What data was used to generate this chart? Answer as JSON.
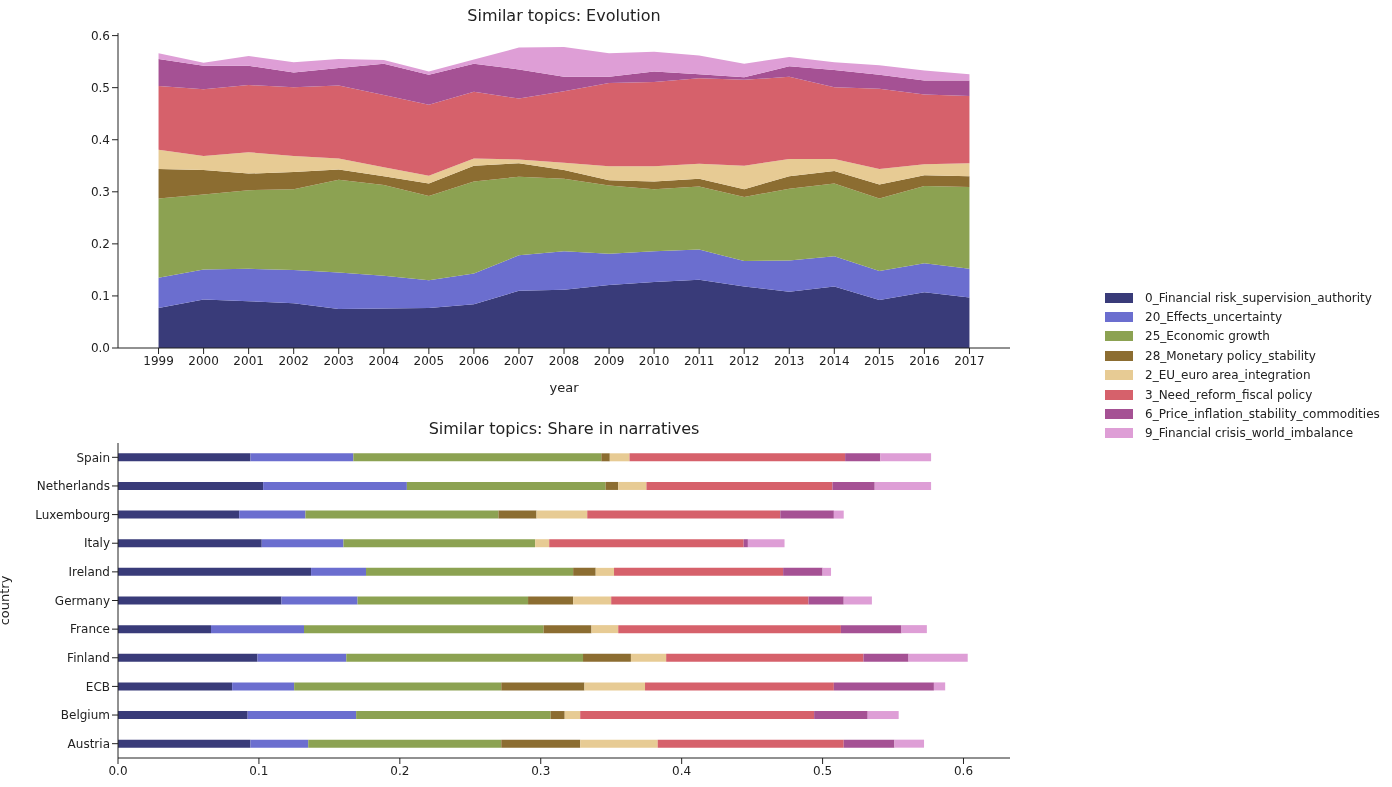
{
  "chart_data": [
    {
      "type": "area",
      "title": "Similar topics: Evolution",
      "xlabel": "year",
      "stacked": true,
      "legend": "right",
      "x": [
        1999,
        2000,
        2001,
        2002,
        2003,
        2004,
        2005,
        2006,
        2007,
        2008,
        2009,
        2010,
        2011,
        2012,
        2013,
        2014,
        2015,
        2016,
        2017
      ],
      "xlim": [
        1998.1,
        2017.9
      ],
      "xticks": [
        1999,
        2000,
        2001,
        2002,
        2003,
        2004,
        2005,
        2006,
        2007,
        2008,
        2009,
        2010,
        2011,
        2012,
        2013,
        2014,
        2015,
        2016,
        2017
      ],
      "ylim": [
        0,
        0.605
      ],
      "yticks": [
        {
          "value": 0,
          "label": "0.0"
        },
        {
          "value": 0.1,
          "label": "0.1"
        },
        {
          "value": 0.2,
          "label": "0.2"
        },
        {
          "value": 0.3,
          "label": "0.3"
        },
        {
          "value": 0.4,
          "label": "0.4"
        },
        {
          "value": 0.5,
          "label": "0.5"
        },
        {
          "value": 0.6,
          "label": "0.6"
        }
      ],
      "series": [
        {
          "name": "0_Financial risk_supervision_authority",
          "color": "#393b79",
          "values": [
            0.077,
            0.093,
            0.09,
            0.086,
            0.075,
            0.076,
            0.077,
            0.084,
            0.11,
            0.112,
            0.121,
            0.127,
            0.131,
            0.118,
            0.108,
            0.118,
            0.092,
            0.107,
            0.097
          ]
        },
        {
          "name": "20_Effects_uncertainty",
          "color": "#6b6ecf",
          "values": [
            0.058,
            0.058,
            0.062,
            0.064,
            0.07,
            0.063,
            0.053,
            0.059,
            0.068,
            0.074,
            0.06,
            0.059,
            0.058,
            0.049,
            0.06,
            0.058,
            0.056,
            0.056,
            0.055
          ]
        },
        {
          "name": "25_Economic growth",
          "color": "#8ca252",
          "values": [
            0.152,
            0.144,
            0.151,
            0.155,
            0.178,
            0.174,
            0.162,
            0.177,
            0.151,
            0.139,
            0.131,
            0.119,
            0.121,
            0.123,
            0.138,
            0.14,
            0.139,
            0.148,
            0.157
          ]
        },
        {
          "name": "28_Monetary policy_stability",
          "color": "#8c6d31",
          "values": [
            0.057,
            0.047,
            0.032,
            0.033,
            0.02,
            0.017,
            0.024,
            0.03,
            0.026,
            0.017,
            0.01,
            0.015,
            0.015,
            0.015,
            0.024,
            0.024,
            0.027,
            0.021,
            0.021
          ]
        },
        {
          "name": "2_EU_euro area_integration",
          "color": "#e7cb94",
          "values": [
            0.037,
            0.027,
            0.041,
            0.031,
            0.021,
            0.017,
            0.015,
            0.014,
            0.007,
            0.014,
            0.027,
            0.029,
            0.029,
            0.045,
            0.033,
            0.023,
            0.03,
            0.021,
            0.025
          ]
        },
        {
          "name": "3_Need_reform_fiscal policy",
          "color": "#d6616b",
          "values": [
            0.122,
            0.128,
            0.129,
            0.132,
            0.14,
            0.139,
            0.136,
            0.128,
            0.117,
            0.137,
            0.16,
            0.162,
            0.164,
            0.165,
            0.158,
            0.138,
            0.154,
            0.134,
            0.129
          ]
        },
        {
          "name": "6_Price_inflation_stability_commodities",
          "color": "#a55194",
          "values": [
            0.052,
            0.045,
            0.037,
            0.028,
            0.034,
            0.06,
            0.058,
            0.054,
            0.056,
            0.028,
            0.012,
            0.02,
            0.008,
            0.005,
            0.02,
            0.033,
            0.027,
            0.027,
            0.03
          ]
        },
        {
          "name": "9_Financial crisis_world_imbalance",
          "color": "#de9ed6",
          "values": [
            0.011,
            0.006,
            0.019,
            0.02,
            0.017,
            0.007,
            0.006,
            0.008,
            0.042,
            0.057,
            0.045,
            0.038,
            0.036,
            0.026,
            0.018,
            0.015,
            0.018,
            0.019,
            0.012
          ]
        }
      ]
    },
    {
      "type": "bar",
      "title": "Similar topics: Share in narratives",
      "ylabel": "country",
      "stacked": true,
      "orientation": "horizontal",
      "categories": [
        "Spain",
        "Netherlands",
        "Luxembourg",
        "Italy",
        "Ireland",
        "Germany",
        "France",
        "Finland",
        "ECB",
        "Belgium",
        "Austria"
      ],
      "xlim": [
        0,
        0.633
      ],
      "xticks": [
        {
          "value": 0,
          "label": "0.0"
        },
        {
          "value": 0.1,
          "label": "0.1"
        },
        {
          "value": 0.2,
          "label": "0.2"
        },
        {
          "value": 0.3,
          "label": "0.3"
        },
        {
          "value": 0.4,
          "label": "0.4"
        },
        {
          "value": 0.5,
          "label": "0.5"
        },
        {
          "value": 0.6,
          "label": "0.6"
        }
      ],
      "series": [
        {
          "color": "#393b79",
          "values": [
            0.094,
            0.103,
            0.086,
            0.102,
            0.137,
            0.116,
            0.066,
            0.099,
            0.081,
            0.092,
            0.094
          ]
        },
        {
          "color": "#6b6ecf",
          "values": [
            0.073,
            0.102,
            0.047,
            0.058,
            0.039,
            0.054,
            0.066,
            0.063,
            0.044,
            0.077,
            0.041
          ]
        },
        {
          "color": "#8ca252",
          "values": [
            0.176,
            0.141,
            0.137,
            0.136,
            0.147,
            0.121,
            0.17,
            0.168,
            0.147,
            0.138,
            0.137
          ]
        },
        {
          "color": "#8c6d31",
          "values": [
            0.006,
            0.009,
            0.027,
            0,
            0.016,
            0.032,
            0.034,
            0.034,
            0.059,
            0.01,
            0.056
          ]
        },
        {
          "color": "#e7cb94",
          "values": [
            0.014,
            0.02,
            0.036,
            0.01,
            0.013,
            0.027,
            0.019,
            0.025,
            0.043,
            0.011,
            0.055
          ]
        },
        {
          "color": "#d6616b",
          "values": [
            0.153,
            0.132,
            0.137,
            0.138,
            0.12,
            0.14,
            0.158,
            0.14,
            0.134,
            0.166,
            0.132
          ]
        },
        {
          "color": "#a55194",
          "values": [
            0.025,
            0.03,
            0.038,
            0.003,
            0.028,
            0.025,
            0.043,
            0.032,
            0.071,
            0.038,
            0.036
          ]
        },
        {
          "color": "#de9ed6",
          "values": [
            0.036,
            0.04,
            0.007,
            0.026,
            0.006,
            0.02,
            0.018,
            0.042,
            0.008,
            0.022,
            0.021
          ]
        }
      ]
    }
  ]
}
